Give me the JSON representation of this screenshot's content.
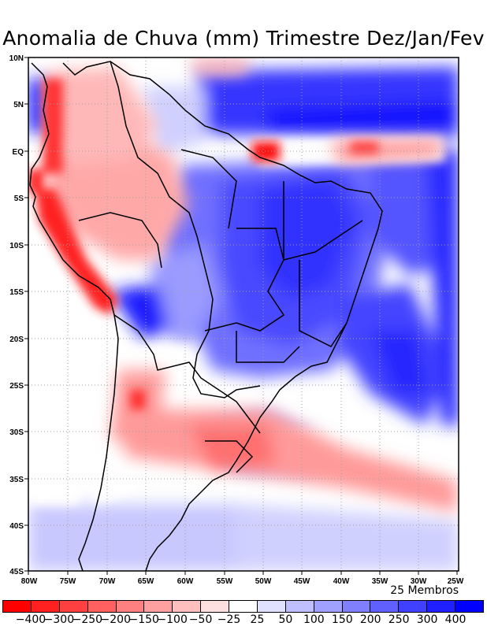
{
  "title": "Anomalia de Chuva (mm) Trimestre Dez/Jan/Fev",
  "members_label": "25 Membros",
  "map": {
    "lon_range": [
      -80,
      -25
    ],
    "lat_range": [
      -45,
      10
    ],
    "x_tick_labels": [
      "80W",
      "75W",
      "70W",
      "65W",
      "60W",
      "55W",
      "50W",
      "45W",
      "40W",
      "35W",
      "30W",
      "25W"
    ],
    "y_tick_labels": [
      "10N",
      "5N",
      "EQ",
      "5S",
      "10S",
      "15S",
      "20S",
      "25S",
      "30S",
      "35S",
      "40S",
      "45S"
    ],
    "grid": "dotted"
  },
  "colorbar": {
    "colors": [
      "#ff0000",
      "#ff2020",
      "#ff4040",
      "#ff6060",
      "#ff8080",
      "#ffa0a0",
      "#ffbfbf",
      "#ffe0e0",
      "#ffffff",
      "#e0e0ff",
      "#bfbfff",
      "#a0a0ff",
      "#8080ff",
      "#6060ff",
      "#4040ff",
      "#2020ff",
      "#0000ff"
    ],
    "labels": [
      "-400",
      "-300",
      "-250",
      "-200",
      "-150",
      "-100",
      "-50",
      "-25",
      "25",
      "50",
      "100",
      "150",
      "200",
      "250",
      "300",
      "400"
    ]
  }
}
